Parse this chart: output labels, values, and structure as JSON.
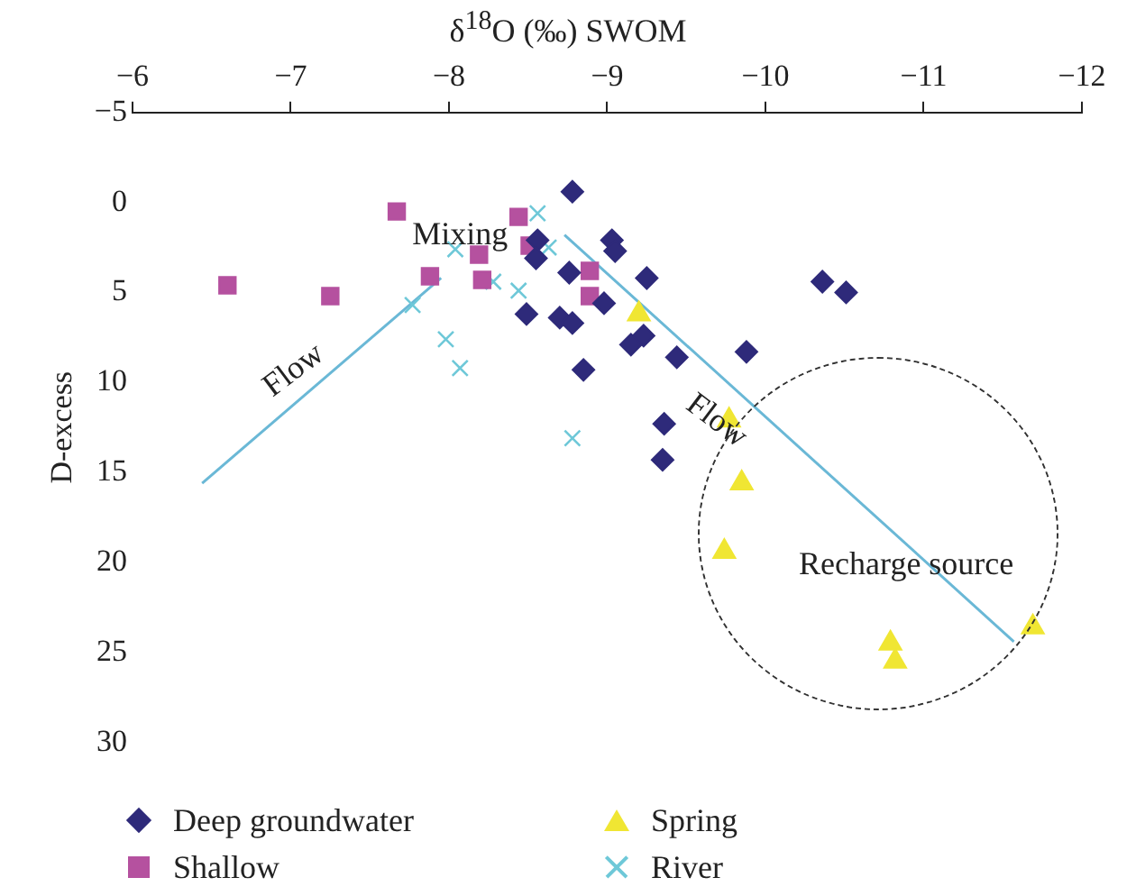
{
  "chart_data": {
    "type": "scatter",
    "xlabel": "δ$^{18}$O (‰) SWOM",
    "ylabel": "D-excess",
    "xlim": [
      -6,
      -12
    ],
    "ylim": [
      30,
      -5
    ],
    "xticks": [
      {
        "value": -6,
        "label": "−6"
      },
      {
        "value": -7,
        "label": "−7"
      },
      {
        "value": -8,
        "label": "−8"
      },
      {
        "value": -9,
        "label": "−9"
      },
      {
        "value": -10,
        "label": "−10"
      },
      {
        "value": -11,
        "label": "−11"
      },
      {
        "value": -12,
        "label": "−12"
      }
    ],
    "yticks": [
      {
        "value": -5,
        "label": "−5"
      },
      0,
      5,
      10,
      15,
      20,
      25,
      30
    ],
    "grid": false,
    "legend": "bottom",
    "series": [
      {
        "name": "Deep groundwater",
        "color": "#2e2a7a",
        "marker": "diamond",
        "x": [
          -8.78,
          -9.03,
          -9.05,
          -8.56,
          -8.55,
          -8.76,
          -9.25,
          -8.49,
          -8.7,
          -8.78,
          -8.98,
          -8.85,
          -9.15,
          -9.23,
          -9.44,
          -9.36,
          -9.35,
          -10.36,
          -10.51,
          -9.88
        ],
        "values": [
          -0.6,
          2.1,
          2.7,
          2.1,
          3.1,
          3.9,
          4.2,
          6.2,
          6.4,
          6.7,
          5.6,
          9.3,
          7.9,
          7.4,
          8.6,
          12.3,
          14.3,
          4.4,
          5.0,
          8.3
        ]
      },
      {
        "name": "Shallow",
        "color": "#b5519f",
        "marker": "square",
        "x": [
          -6.6,
          -7.25,
          -7.67,
          -7.88,
          -8.19,
          -8.21,
          -8.44,
          -8.51,
          -8.89,
          -8.89
        ],
        "values": [
          4.6,
          5.2,
          0.5,
          4.1,
          2.9,
          4.3,
          0.8,
          2.4,
          3.8,
          5.2
        ]
      },
      {
        "name": "Spring",
        "color": "#f0e633",
        "marker": "triangle",
        "x": [
          -9.2,
          -9.77,
          -9.85,
          -9.74,
          -10.79,
          -10.82,
          -11.69
        ],
        "values": [
          6.2,
          12.1,
          15.6,
          19.4,
          24.5,
          25.5,
          23.6
        ]
      },
      {
        "name": "River",
        "color": "#6ec8d8",
        "marker": "cross",
        "x": [
          -8.56,
          -8.04,
          -8.63,
          -8.28,
          -8.44,
          -7.77,
          -7.98,
          -8.07,
          -8.78
        ],
        "values": [
          0.6,
          2.6,
          2.5,
          4.4,
          4.9,
          5.7,
          7.6,
          9.2,
          13.1
        ]
      },
      {
        "type": "line",
        "color": "#6ab8d6",
        "marker": "none",
        "x": [
          -6.44,
          -7.95
        ],
        "values": [
          15.6,
          4.2
        ]
      },
      {
        "type": "line",
        "color": "#6ab8d6",
        "marker": "none",
        "x": [
          -8.73,
          -11.57
        ],
        "values": [
          1.8,
          24.4
        ]
      }
    ],
    "annotations": [
      "Mixing",
      "Flow",
      "Flow",
      "Recharge source"
    ]
  }
}
